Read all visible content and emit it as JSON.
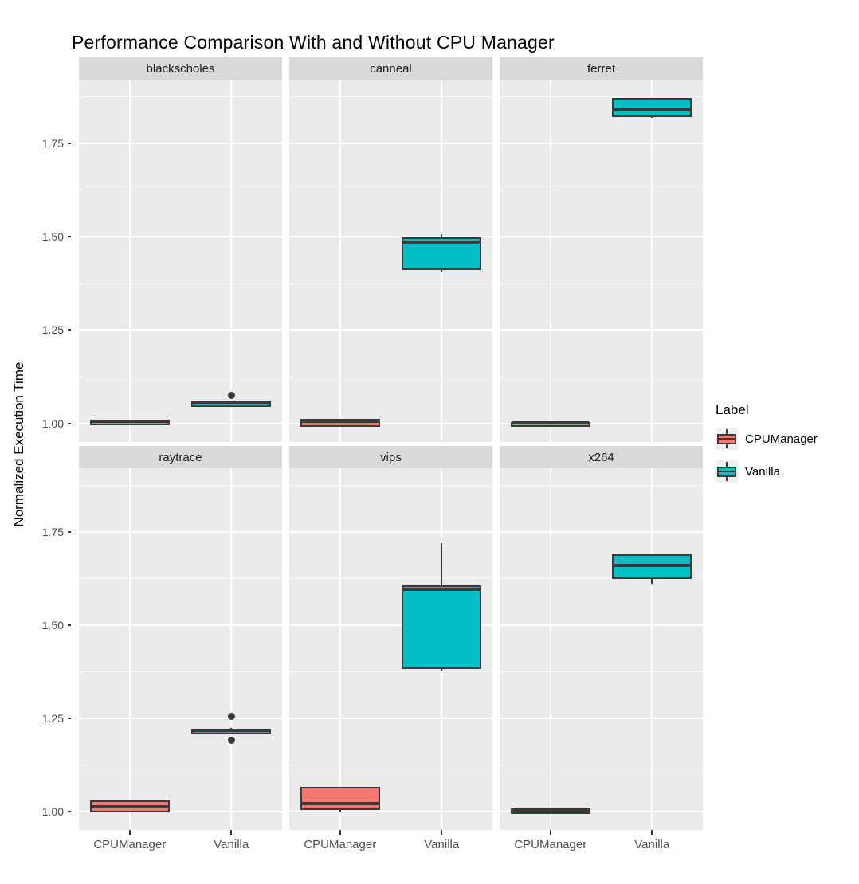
{
  "title": "Performance Comparison With and Without CPU Manager",
  "axes": {
    "ylabel": "Normalized Execution Time",
    "ytick_labels": [
      "1.00",
      "1.25",
      "1.50",
      "1.75"
    ],
    "xcategories": [
      "CPUManager",
      "Vanilla"
    ]
  },
  "legend": {
    "title": "Label",
    "entries": [
      {
        "label": "CPUManager",
        "color": "#F8766D"
      },
      {
        "label": "Vanilla",
        "color": "#00BFC4"
      }
    ]
  },
  "colors": {
    "panel_background": "#EBEBEB",
    "strip_background": "#D9D9D9",
    "gridline": "#FFFFFF",
    "box_stroke": "#3A3A3A",
    "axis_text": "#4D4D4D",
    "cpumanager_fill": "#F8766D",
    "vanilla_fill": "#00BFC4"
  },
  "chart_data": {
    "type": "boxplot",
    "title": "Performance Comparison With and Without CPU Manager",
    "ylabel": "Normalized Execution Time",
    "xlabel": "",
    "facet_layout": {
      "rows": 2,
      "cols": 3
    },
    "ylim": [
      0.95,
      1.92
    ],
    "yticks": [
      1.0,
      1.25,
      1.5,
      1.75
    ],
    "ytick_labels": [
      "1.00",
      "1.25",
      "1.50",
      "1.75"
    ],
    "minor_yticks": [
      1.125,
      1.375,
      1.625,
      1.875
    ],
    "categories": [
      "CPUManager",
      "Vanilla"
    ],
    "series_colors": {
      "CPUManager": "#F8766D",
      "Vanilla": "#00BFC4"
    },
    "legend": {
      "title": "Label",
      "entries": [
        "CPUManager",
        "Vanilla"
      ],
      "position": "right"
    },
    "grid": true,
    "facets": [
      {
        "name": "blackscholes",
        "boxes": [
          {
            "group": "CPUManager",
            "min": 1.002,
            "q1": 1.003,
            "median": 1.006,
            "q3": 1.009,
            "max": 1.009,
            "outliers": []
          },
          {
            "group": "Vanilla",
            "min": 1.052,
            "q1": 1.053,
            "median": 1.057,
            "q3": 1.06,
            "max": 1.06,
            "outliers": [
              1.074
            ]
          }
        ]
      },
      {
        "name": "canneal",
        "boxes": [
          {
            "group": "CPUManager",
            "min": 1.0,
            "q1": 1.0,
            "median": 1.005,
            "q3": 1.012,
            "max": 1.012,
            "outliers": []
          },
          {
            "group": "Vanilla",
            "min": 1.405,
            "q1": 1.42,
            "median": 1.485,
            "q3": 1.497,
            "max": 1.507,
            "outliers": []
          }
        ]
      },
      {
        "name": "ferret",
        "boxes": [
          {
            "group": "CPUManager",
            "min": 0.999,
            "q1": 1.0,
            "median": 1.002,
            "q3": 1.004,
            "max": 1.004,
            "outliers": []
          },
          {
            "group": "Vanilla",
            "min": 1.818,
            "q1": 1.828,
            "median": 1.838,
            "q3": 1.872,
            "max": 1.872,
            "outliers": []
          }
        ]
      },
      {
        "name": "raytrace",
        "boxes": [
          {
            "group": "CPUManager",
            "min": 1.003,
            "q1": 1.005,
            "median": 1.012,
            "q3": 1.028,
            "max": 1.028,
            "outliers": []
          },
          {
            "group": "Vanilla",
            "min": 1.214,
            "q1": 1.215,
            "median": 1.218,
            "q3": 1.222,
            "max": 1.223,
            "outliers": [
              1.255,
              1.19
            ]
          }
        ]
      },
      {
        "name": "vips",
        "boxes": [
          {
            "group": "CPUManager",
            "min": 1.0,
            "q1": 1.013,
            "median": 1.02,
            "q3": 1.066,
            "max": 1.066,
            "outliers": []
          },
          {
            "group": "Vanilla",
            "min": 1.375,
            "q1": 1.39,
            "median": 1.595,
            "q3": 1.605,
            "max": 1.72,
            "outliers": []
          }
        ]
      },
      {
        "name": "x264",
        "boxes": [
          {
            "group": "CPUManager",
            "min": 1.0,
            "q1": 1.001,
            "median": 1.004,
            "q3": 1.008,
            "max": 1.008,
            "outliers": []
          },
          {
            "group": "Vanilla",
            "min": 1.61,
            "q1": 1.632,
            "median": 1.66,
            "q3": 1.69,
            "max": 1.69,
            "outliers": []
          }
        ]
      }
    ]
  }
}
